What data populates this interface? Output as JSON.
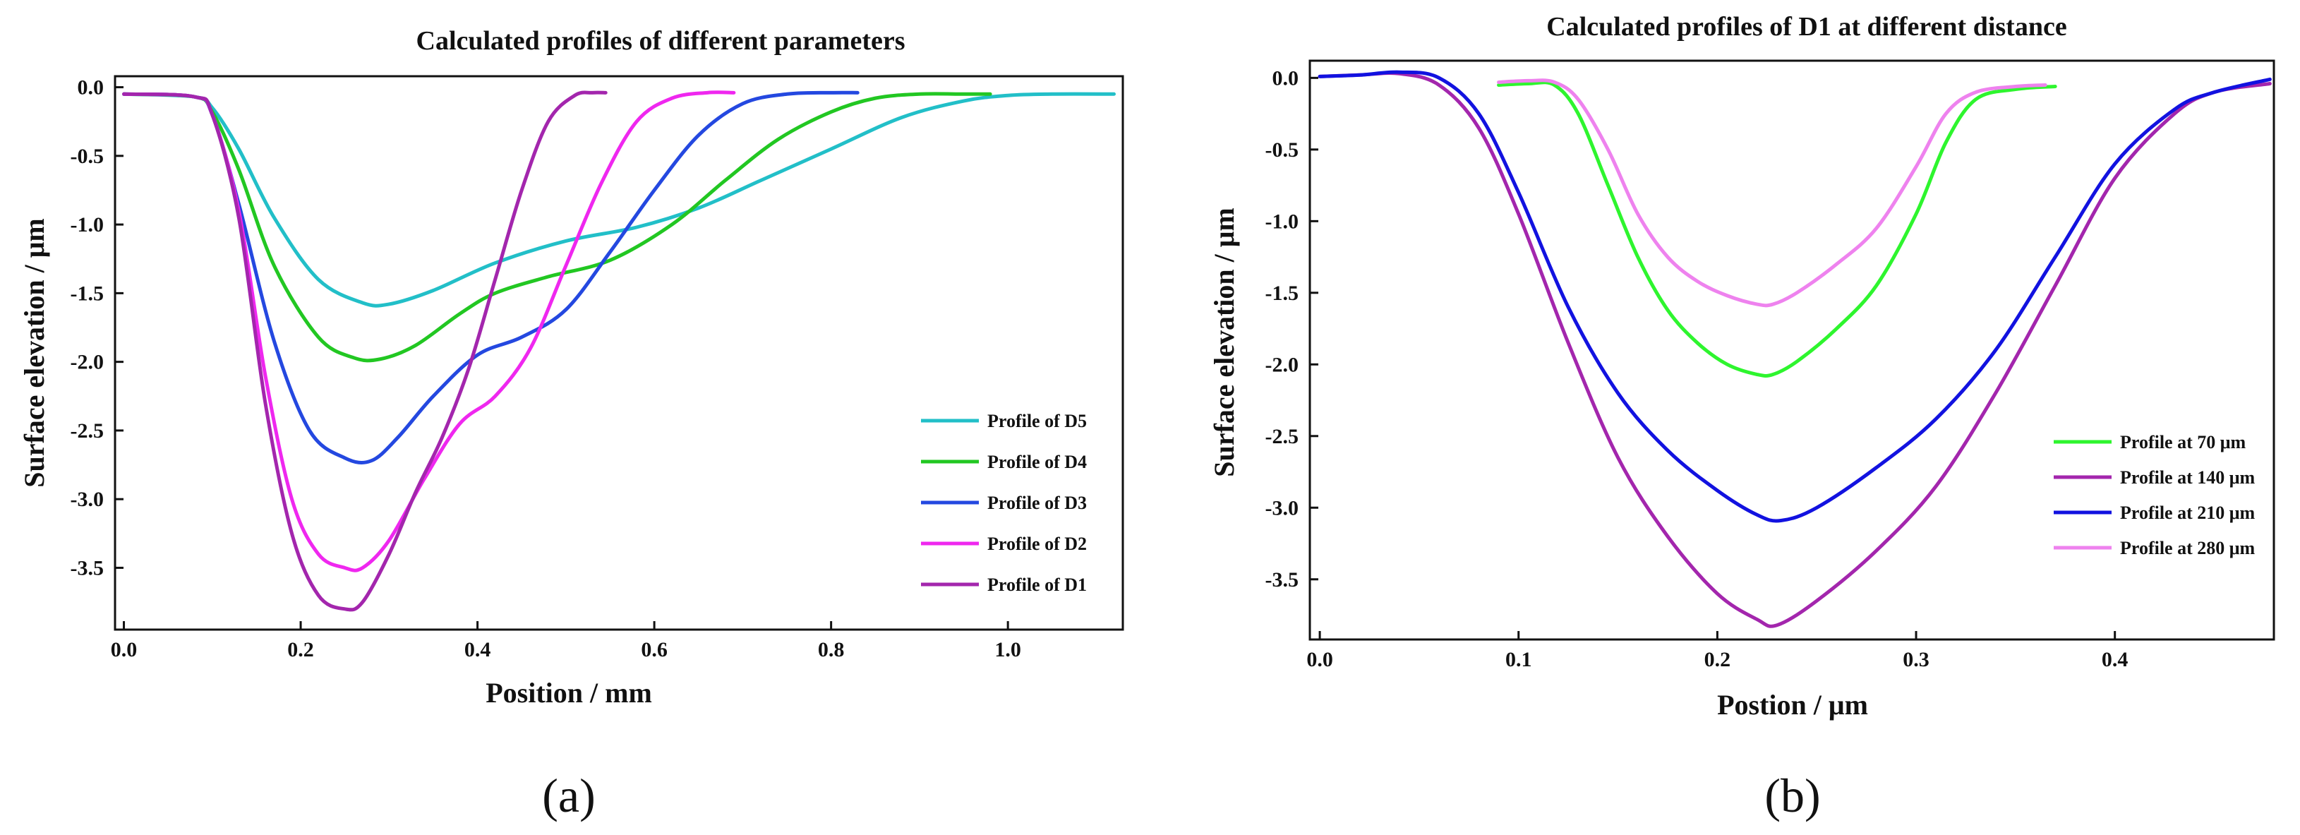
{
  "chart_data": [
    {
      "type": "line",
      "panel_label": "(a)",
      "title": "Calculated profiles of different parameters",
      "xlabel": "Position / mm",
      "ylabel": "Surface elevation / μm",
      "xlim": [
        -0.01,
        1.13
      ],
      "ylim": [
        -3.95,
        0.08
      ],
      "xticks": [
        0.0,
        0.2,
        0.4,
        0.6,
        0.8,
        1.0
      ],
      "xtick_labels": [
        "0.0",
        "0.2",
        "0.4",
        "0.6",
        "0.8",
        "1.0"
      ],
      "yticks": [
        0.0,
        -0.5,
        -1.0,
        -1.5,
        -2.0,
        -2.5,
        -3.0,
        -3.5
      ],
      "ytick_labels": [
        "0.0",
        "-0.5",
        "-1.0",
        "-1.5",
        "-2.0",
        "-2.5",
        "-3.0",
        "-3.5"
      ],
      "legend_position": "lower-right",
      "series": [
        {
          "name": "Profile of D5",
          "color": "#22bfc8",
          "x": [
            0.0,
            0.08,
            0.1,
            0.13,
            0.17,
            0.22,
            0.27,
            0.3,
            0.35,
            0.42,
            0.5,
            0.58,
            0.65,
            0.72,
            0.8,
            0.88,
            0.95,
            1.0,
            1.05,
            1.12
          ],
          "y": [
            -0.05,
            -0.07,
            -0.15,
            -0.45,
            -0.95,
            -1.4,
            -1.57,
            -1.58,
            -1.48,
            -1.28,
            -1.12,
            -1.02,
            -0.88,
            -0.68,
            -0.45,
            -0.22,
            -0.1,
            -0.06,
            -0.05,
            -0.05
          ]
        },
        {
          "name": "Profile of D4",
          "color": "#22c722",
          "x": [
            0.0,
            0.08,
            0.1,
            0.13,
            0.17,
            0.22,
            0.26,
            0.29,
            0.33,
            0.38,
            0.42,
            0.48,
            0.55,
            0.62,
            0.68,
            0.74,
            0.8,
            0.85,
            0.9,
            0.95,
            0.98
          ],
          "y": [
            -0.05,
            -0.07,
            -0.18,
            -0.6,
            -1.3,
            -1.82,
            -1.97,
            -1.98,
            -1.88,
            -1.65,
            -1.5,
            -1.38,
            -1.26,
            -1.0,
            -0.68,
            -0.38,
            -0.18,
            -0.08,
            -0.05,
            -0.05,
            -0.05
          ]
        },
        {
          "name": "Profile of D3",
          "color": "#2448e0",
          "x": [
            0.0,
            0.08,
            0.1,
            0.13,
            0.17,
            0.21,
            0.25,
            0.28,
            0.31,
            0.35,
            0.4,
            0.45,
            0.5,
            0.55,
            0.6,
            0.65,
            0.7,
            0.75,
            0.8,
            0.83
          ],
          "y": [
            -0.05,
            -0.07,
            -0.2,
            -0.85,
            -1.85,
            -2.5,
            -2.7,
            -2.72,
            -2.55,
            -2.25,
            -1.95,
            -1.82,
            -1.62,
            -1.2,
            -0.75,
            -0.35,
            -0.12,
            -0.05,
            -0.04,
            -0.04
          ]
        },
        {
          "name": "Profile of D2",
          "color": "#ef27ef",
          "x": [
            0.0,
            0.08,
            0.1,
            0.13,
            0.16,
            0.19,
            0.22,
            0.25,
            0.27,
            0.3,
            0.34,
            0.38,
            0.42,
            0.46,
            0.5,
            0.54,
            0.58,
            0.62,
            0.66,
            0.69
          ],
          "y": [
            -0.05,
            -0.07,
            -0.2,
            -0.9,
            -2.1,
            -3.0,
            -3.4,
            -3.5,
            -3.5,
            -3.3,
            -2.85,
            -2.45,
            -2.25,
            -1.9,
            -1.3,
            -0.7,
            -0.25,
            -0.08,
            -0.04,
            -0.04
          ]
        },
        {
          "name": "Profile of D1",
          "color": "#a326ad",
          "x": [
            0.0,
            0.08,
            0.1,
            0.13,
            0.16,
            0.19,
            0.22,
            0.25,
            0.27,
            0.3,
            0.33,
            0.36,
            0.39,
            0.42,
            0.45,
            0.48,
            0.51,
            0.53,
            0.545
          ],
          "y": [
            -0.05,
            -0.07,
            -0.2,
            -0.95,
            -2.3,
            -3.25,
            -3.7,
            -3.8,
            -3.75,
            -3.4,
            -2.95,
            -2.55,
            -2.05,
            -1.4,
            -0.75,
            -0.25,
            -0.06,
            -0.04,
            -0.04
          ]
        }
      ]
    },
    {
      "type": "line",
      "panel_label": "(b)",
      "title": "Calculated profiles of D1 at different distance",
      "xlabel": "Postion / μm",
      "ylabel": "Surface elevation / μm",
      "xlim": [
        -0.005,
        0.48
      ],
      "ylim": [
        -3.92,
        0.12
      ],
      "xticks": [
        0.0,
        0.1,
        0.2,
        0.3,
        0.4
      ],
      "xtick_labels": [
        "0.0",
        "0.1",
        "0.2",
        "0.3",
        "0.4"
      ],
      "yticks": [
        0.0,
        -0.5,
        -1.0,
        -1.5,
        -2.0,
        -2.5,
        -3.0,
        -3.5
      ],
      "ytick_labels": [
        "0.0",
        "-0.5",
        "-1.0",
        "-1.5",
        "-2.0",
        "-2.5",
        "-3.0",
        "-3.5"
      ],
      "legend_position": "lower-right",
      "series": [
        {
          "name": "Profile at 70 μm",
          "color": "#2ef52e",
          "x": [
            0.09,
            0.105,
            0.118,
            0.13,
            0.145,
            0.16,
            0.175,
            0.19,
            0.205,
            0.22,
            0.228,
            0.24,
            0.26,
            0.28,
            0.3,
            0.315,
            0.33,
            0.35,
            0.37
          ],
          "y": [
            -0.05,
            -0.04,
            -0.05,
            -0.25,
            -0.75,
            -1.25,
            -1.62,
            -1.85,
            -2.0,
            -2.07,
            -2.07,
            -1.98,
            -1.75,
            -1.45,
            -0.95,
            -0.45,
            -0.15,
            -0.08,
            -0.06
          ]
        },
        {
          "name": "Profile at 140 μm",
          "color": "#a326ad",
          "x": [
            0.0,
            0.02,
            0.04,
            0.06,
            0.08,
            0.1,
            0.125,
            0.15,
            0.175,
            0.2,
            0.22,
            0.23,
            0.25,
            0.28,
            0.31,
            0.34,
            0.37,
            0.4,
            0.43,
            0.45,
            0.478
          ],
          "y": [
            0.01,
            0.02,
            0.03,
            -0.05,
            -0.35,
            -0.95,
            -1.85,
            -2.65,
            -3.2,
            -3.6,
            -3.78,
            -3.82,
            -3.65,
            -3.3,
            -2.85,
            -2.2,
            -1.45,
            -0.7,
            -0.25,
            -0.1,
            -0.04
          ]
        },
        {
          "name": "Profile at 210 μm",
          "color": "#1212e0",
          "x": [
            0.0,
            0.02,
            0.04,
            0.06,
            0.08,
            0.1,
            0.125,
            0.15,
            0.175,
            0.2,
            0.22,
            0.232,
            0.25,
            0.28,
            0.31,
            0.34,
            0.37,
            0.4,
            0.43,
            0.45,
            0.478
          ],
          "y": [
            0.01,
            0.02,
            0.04,
            0.0,
            -0.25,
            -0.8,
            -1.6,
            -2.2,
            -2.6,
            -2.88,
            -3.05,
            -3.09,
            -3.0,
            -2.72,
            -2.38,
            -1.9,
            -1.25,
            -0.6,
            -0.22,
            -0.1,
            -0.01
          ]
        },
        {
          "name": "Profile at 280 μm",
          "color": "#ee82ee",
          "x": [
            0.09,
            0.105,
            0.118,
            0.13,
            0.145,
            0.16,
            0.175,
            0.19,
            0.205,
            0.22,
            0.228,
            0.24,
            0.26,
            0.28,
            0.3,
            0.315,
            0.33,
            0.35,
            0.365
          ],
          "y": [
            -0.03,
            -0.02,
            -0.03,
            -0.15,
            -0.5,
            -0.95,
            -1.25,
            -1.42,
            -1.52,
            -1.58,
            -1.58,
            -1.5,
            -1.3,
            -1.05,
            -0.62,
            -0.25,
            -0.1,
            -0.06,
            -0.05
          ]
        }
      ]
    }
  ]
}
